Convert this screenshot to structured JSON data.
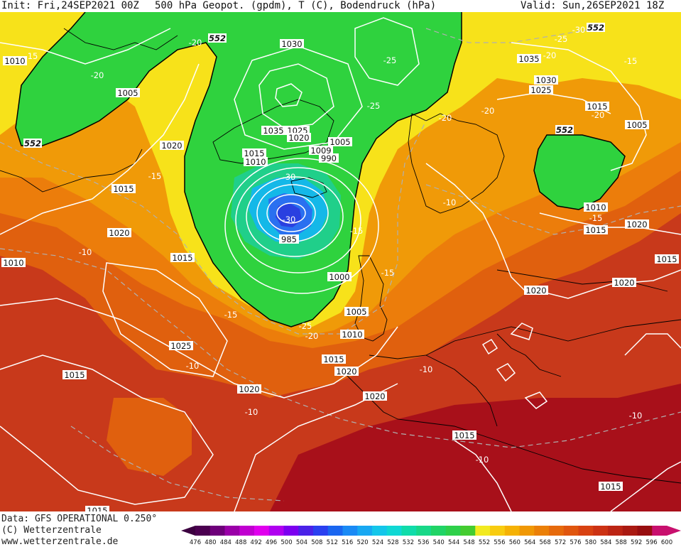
{
  "header": {
    "init": "Init: Fri,24SEP2021 00Z",
    "title": "500 hPa Geopot. (gpdm), T (C), Bodendruck (hPa)",
    "valid": "Valid: Sun,26SEP2021 18Z"
  },
  "footer": {
    "data_source": "Data: GFS OPERATIONAL 0.250°",
    "copyright": "(C) Wetterzentrale",
    "website": "www.wetterzentrale.de"
  },
  "legend": {
    "values": [
      "476",
      "480",
      "484",
      "488",
      "492",
      "496",
      "500",
      "504",
      "508",
      "512",
      "516",
      "520",
      "524",
      "528",
      "532",
      "536",
      "540",
      "544",
      "548",
      "552",
      "556",
      "560",
      "564",
      "568",
      "572",
      "576",
      "580",
      "584",
      "588",
      "592",
      "596",
      "600"
    ],
    "colors": [
      "#4b0050",
      "#6e007a",
      "#9a00a8",
      "#c000d0",
      "#e000ee",
      "#b000f0",
      "#7c00f0",
      "#4a22e8",
      "#2a40f0",
      "#1a66f0",
      "#1a8af5",
      "#18a8f2",
      "#14c6ea",
      "#10d8d4",
      "#10dcaa",
      "#18d888",
      "#20d466",
      "#2ed04a",
      "#44cc30",
      "#f2ea20",
      "#f8cc10",
      "#f5b205",
      "#f09805",
      "#eb8008",
      "#e66a0c",
      "#e0560f",
      "#d84212",
      "#cc3214",
      "#bc2514",
      "#aa1a12",
      "#980e10",
      "#c8106e"
    ]
  },
  "map_labels": {
    "pressure": [
      "1010",
      "1005",
      "1015",
      "1020",
      "1010",
      "1015",
      "1020",
      "1025",
      "1015",
      "1020",
      "1030",
      "1035",
      "1025",
      "1015",
      "1010",
      "1020",
      "1005",
      "1009",
      "990",
      "985",
      "1000",
      "1005",
      "1010",
      "1015",
      "1020",
      "1020",
      "1035",
      "1030",
      "1025",
      "1015",
      "1005",
      "1010",
      "1015",
      "1020",
      "1020",
      "1020",
      "1015",
      "1015",
      "1015",
      "1015"
    ],
    "temperature": [
      "-15",
      "-20",
      "-20",
      "-15",
      "-10",
      "-15",
      "-10",
      "-25",
      "-20",
      "-30",
      "-30",
      "-25",
      "-25",
      "-15",
      "-15",
      "-20",
      "-20",
      "-10",
      "-10",
      "-10",
      "-25",
      "-30",
      "-20",
      "-20",
      "-15",
      "-15",
      "-10",
      "-10"
    ],
    "geopotential": [
      "552",
      "552",
      "552",
      "552"
    ]
  },
  "colors": {
    "green": "#2fd23e",
    "yellow": "#f7e21a",
    "orange": "#ec7d0b",
    "red": "#c8391b",
    "dark_red": "#a8101a",
    "isobar": "#ffffff",
    "isotherm": "#b0b0b0"
  }
}
